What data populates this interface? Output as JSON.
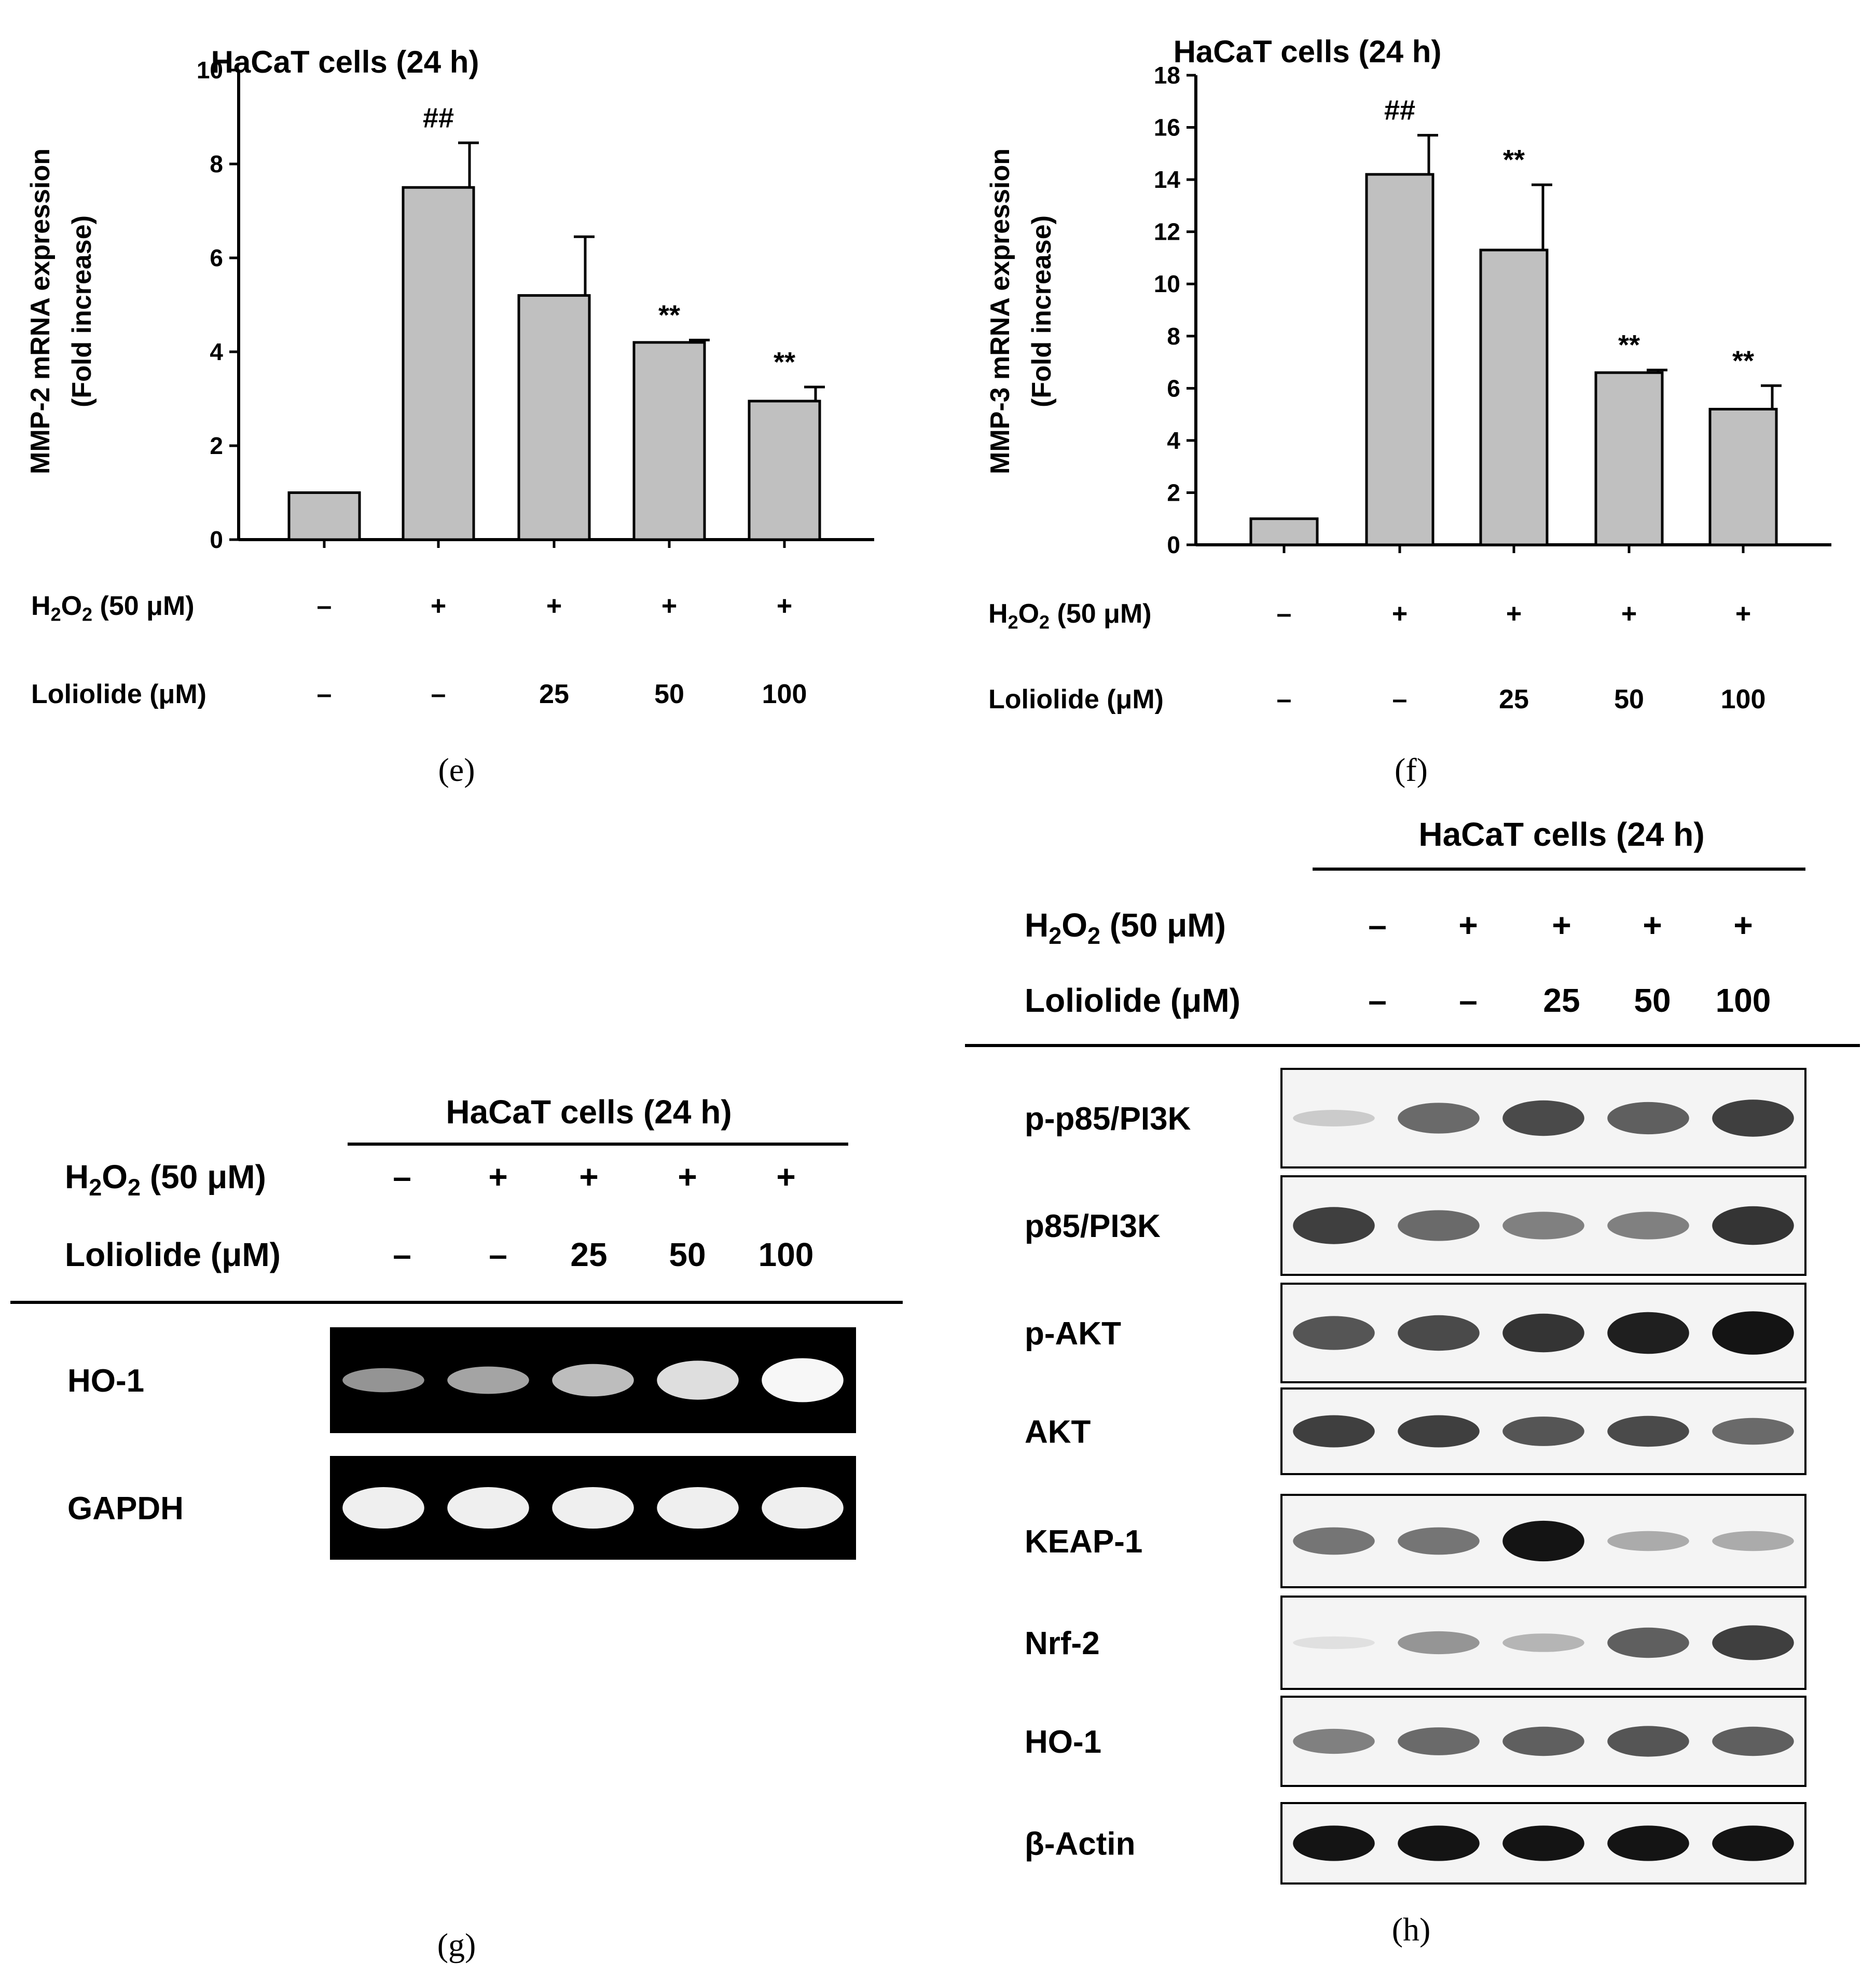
{
  "chart_data": [
    {
      "panel": "e",
      "type": "bar",
      "title": "HaCaT cells (24 h)",
      "ylabel": "MMP-2 mRNA expression",
      "ylabel2": "(Fold increase)",
      "ylim": [
        0,
        10
      ],
      "yticks": [
        0,
        2,
        4,
        6,
        8,
        10
      ],
      "values": [
        1.0,
        7.5,
        5.2,
        4.2,
        2.95
      ],
      "errors": [
        0,
        0.95,
        1.25,
        0.05,
        0.3
      ],
      "marks": [
        "",
        "##",
        "",
        "**",
        "**"
      ],
      "treatments": [
        {
          "label": "H2O2 (50 μM)",
          "values": [
            "–",
            "+",
            "+",
            "+",
            "+"
          ]
        },
        {
          "label": "Loliolide (μM)",
          "values": [
            "–",
            "–",
            "25",
            "50",
            "100"
          ]
        }
      ],
      "bar_color": "#c0c0c0"
    },
    {
      "panel": "f",
      "type": "bar",
      "title": "HaCaT cells (24 h)",
      "ylabel": "MMP-3 mRNA expression",
      "ylabel2": "(Fold increase)",
      "ylim": [
        0,
        18
      ],
      "yticks": [
        0,
        2,
        4,
        6,
        8,
        10,
        12,
        14,
        16,
        18
      ],
      "values": [
        1.0,
        14.2,
        11.3,
        6.6,
        5.2
      ],
      "errors": [
        0,
        1.5,
        2.5,
        0.1,
        0.9
      ],
      "marks": [
        "",
        "##",
        "**",
        "**",
        "**"
      ],
      "treatments": [
        {
          "label": "H2O2 (50 μM)",
          "values": [
            "–",
            "+",
            "+",
            "+",
            "+"
          ]
        },
        {
          "label": "Loliolide (μM)",
          "values": [
            "–",
            "–",
            "25",
            "50",
            "100"
          ]
        }
      ],
      "bar_color": "#c0c0c0"
    }
  ],
  "panels": {
    "e": "(e)",
    "f": "(f)",
    "g": "(g)",
    "h": "(h)"
  },
  "blot_g": {
    "title": "HaCaT cells (24 h)",
    "treatments": [
      {
        "label": "H2O2 (50 μM)",
        "values": [
          "–",
          "+",
          "+",
          "+",
          "+"
        ]
      },
      {
        "label": "Loliolide (μM)",
        "values": [
          "–",
          "–",
          "25",
          "50",
          "100"
        ]
      }
    ],
    "rows": [
      {
        "name": "HO-1",
        "intensity": [
          0.35,
          0.45,
          0.6,
          0.8,
          0.95
        ]
      },
      {
        "name": "GAPDH",
        "intensity": [
          0.9,
          0.9,
          0.9,
          0.9,
          0.9
        ]
      }
    ]
  },
  "blot_h": {
    "title": "HaCaT cells (24 h)",
    "treatments": [
      {
        "label": "H2O2 (50 μM)",
        "values": [
          "–",
          "+",
          "+",
          "+",
          "+"
        ]
      },
      {
        "label": "Loliolide (μM)",
        "values": [
          "–",
          "–",
          "25",
          "50",
          "100"
        ]
      }
    ],
    "rows": [
      {
        "name": "p-p85/PI3K",
        "intensity": [
          0.15,
          0.6,
          0.75,
          0.65,
          0.8
        ]
      },
      {
        "name": "p85/PI3K",
        "intensity": [
          0.8,
          0.6,
          0.5,
          0.5,
          0.85
        ]
      },
      {
        "name": "p-AKT",
        "intensity": [
          0.7,
          0.75,
          0.85,
          0.95,
          1.0
        ]
      },
      {
        "name": "AKT",
        "intensity": [
          0.8,
          0.8,
          0.7,
          0.75,
          0.6
        ]
      },
      {
        "name": "KEAP-1",
        "intensity": [
          0.55,
          0.55,
          1.0,
          0.3,
          0.3
        ]
      },
      {
        "name": "Nrf-2",
        "intensity": [
          0.05,
          0.4,
          0.25,
          0.65,
          0.8
        ]
      },
      {
        "name": "HO-1",
        "intensity": [
          0.5,
          0.6,
          0.65,
          0.7,
          0.65
        ]
      },
      {
        "name": "β-Actin",
        "intensity": [
          1.0,
          1.0,
          1.0,
          1.0,
          1.0
        ]
      }
    ]
  }
}
